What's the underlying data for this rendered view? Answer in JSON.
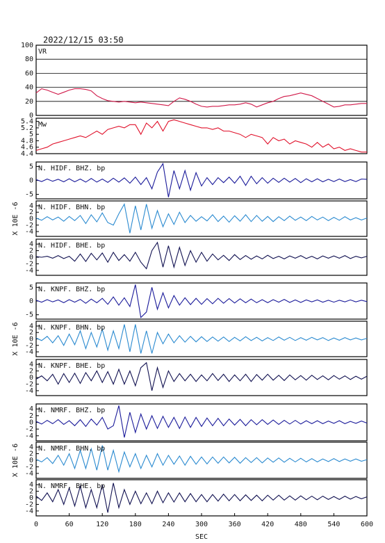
{
  "chart_data": {
    "type": "line",
    "title": "2022/12/15 03:50",
    "xlabel": "SEC",
    "xlim": [
      0,
      600
    ],
    "xticks": [
      0,
      60,
      120,
      180,
      240,
      300,
      360,
      420,
      480,
      540,
      600
    ],
    "x": [
      0,
      10,
      20,
      30,
      40,
      50,
      60,
      70,
      80,
      90,
      100,
      110,
      120,
      130,
      140,
      150,
      160,
      170,
      180,
      190,
      200,
      210,
      220,
      230,
      240,
      250,
      260,
      270,
      280,
      290,
      300,
      310,
      320,
      330,
      340,
      350,
      360,
      370,
      380,
      390,
      400,
      410,
      420,
      430,
      440,
      450,
      460,
      470,
      480,
      490,
      500,
      510,
      520,
      530,
      540,
      550,
      560,
      570,
      580,
      590,
      600
    ],
    "panels": [
      {
        "label": "VR",
        "ylim": [
          0,
          100
        ],
        "yticks": [
          0,
          20,
          40,
          60,
          80,
          100
        ],
        "grid": true,
        "series": [
          {
            "color": "#d01848",
            "values": [
              32,
              38,
              36,
              33,
              30,
              33,
              36,
              38,
              38,
              37,
              35,
              28,
              24,
              21,
              20,
              19,
              20,
              19,
              18,
              19,
              18,
              17,
              16,
              15,
              14,
              20,
              25,
              23,
              20,
              16,
              13,
              12,
              13,
              13,
              14,
              15,
              15,
              16,
              18,
              16,
              12,
              15,
              18,
              20,
              24,
              27,
              28,
              30,
              32,
              30,
              28,
              24,
              20,
              16,
              12,
              13,
              15,
              15,
              16,
              17,
              17
            ]
          }
        ]
      },
      {
        "label": "Mw",
        "ylim": [
          4.4,
          5.5
        ],
        "yticks": [
          4.4,
          4.6,
          4.8,
          5,
          5.2,
          5.4
        ],
        "grid": false,
        "series": [
          {
            "color": "#e0102a",
            "values": [
              4.5,
              4.55,
              4.6,
              4.7,
              4.75,
              4.8,
              4.85,
              4.9,
              4.95,
              4.9,
              5.0,
              5.1,
              5.0,
              5.15,
              5.2,
              5.25,
              5.2,
              5.3,
              5.3,
              5.0,
              5.35,
              5.2,
              5.4,
              5.1,
              5.4,
              5.45,
              5.4,
              5.35,
              5.3,
              5.25,
              5.2,
              5.2,
              5.15,
              5.2,
              5.1,
              5.1,
              5.05,
              5.0,
              4.9,
              5.0,
              4.95,
              4.9,
              4.7,
              4.9,
              4.8,
              4.85,
              4.7,
              4.8,
              4.75,
              4.7,
              4.6,
              4.75,
              4.6,
              4.7,
              4.55,
              4.6,
              4.5,
              4.55,
              4.5,
              4.45,
              4.45
            ]
          }
        ]
      },
      {
        "label": "N. HIDF. BHZ. bp",
        "ylim": [
          -6.6,
          6.6
        ],
        "yticks": [
          -5,
          0,
          5
        ],
        "grid": false,
        "series": [
          {
            "color": "#1a1a9a",
            "values": [
              0.3,
              -0.4,
              0.5,
              -0.3,
              0.4,
              -0.5,
              0.6,
              -0.5,
              0.5,
              -0.6,
              0.7,
              -0.6,
              0.5,
              -0.7,
              0.8,
              -0.6,
              0.9,
              -1,
              1.2,
              -1.5,
              1,
              -3,
              3,
              6,
              -6,
              3.5,
              -3,
              3.5,
              -3.5,
              2.8,
              -2,
              1,
              -1.5,
              1,
              -0.8,
              1.2,
              -1,
              1.5,
              -1.8,
              1.5,
              -1.2,
              1,
              -1,
              0.8,
              -0.7,
              0.8,
              -0.6,
              0.7,
              -0.8,
              0.6,
              -0.5,
              0.6,
              -0.5,
              0.4,
              -0.4,
              0.5,
              -0.4,
              0.3,
              -0.4,
              0.5,
              0.4
            ]
          }
        ]
      },
      {
        "label": "N. HIDF. BHN. bp",
        "ylabel": "X 10E -6",
        "ylim": [
          -5.5,
          5.5
        ],
        "yticks": [
          -4,
          -2,
          0,
          2,
          4
        ],
        "grid": false,
        "series": [
          {
            "color": "#2a8ad0",
            "values": [
              0.2,
              -0.5,
              0.6,
              -0.4,
              0.5,
              -0.8,
              0.7,
              -0.6,
              1,
              -1.5,
              1.2,
              -1,
              1.8,
              -1.2,
              -2,
              1.5,
              4.5,
              -4.5,
              4,
              -3.5,
              4.5,
              -3,
              2.5,
              -2.5,
              1.5,
              -1.8,
              2,
              -1.2,
              1,
              -0.8,
              0.6,
              -0.7,
              1.2,
              -0.9,
              0.8,
              -1.1,
              0.9,
              -0.8,
              1.2,
              -0.9,
              1,
              -0.8,
              0.7,
              -0.9,
              0.6,
              -0.6,
              0.8,
              -0.5,
              0.5,
              -0.6,
              0.7,
              -0.4,
              0.5,
              -0.6,
              0.4,
              -0.5,
              0.6,
              -0.4,
              0.3,
              -0.4,
              0.2
            ]
          }
        ]
      },
      {
        "label": "N. HIDF. BHE. bp",
        "ylim": [
          -5.5,
          5.5
        ],
        "yticks": [
          -4,
          -2,
          0,
          2,
          4
        ],
        "grid": false,
        "series": [
          {
            "color": "#101050",
            "values": [
              0.2,
              0,
              0.3,
              -0.3,
              0.5,
              -0.4,
              0.3,
              -1.2,
              1,
              -1.3,
              1.2,
              -0.8,
              1.3,
              -1.5,
              1.5,
              -1,
              0.8,
              -1.2,
              1.5,
              -1.5,
              -3.5,
              2,
              4.5,
              -3,
              3.5,
              -3,
              3,
              -2.5,
              2,
              -1.5,
              1.5,
              -1.2,
              1,
              -0.8,
              0.6,
              -1,
              0.8,
              -0.7,
              0.5,
              -0.6,
              0.4,
              -0.5,
              0.6,
              -0.4,
              0.3,
              -0.5,
              0.4,
              -0.3,
              0.5,
              -0.4,
              0.3,
              -0.5,
              0.4,
              -0.3,
              0.4,
              -0.3,
              0.5,
              -0.4,
              0.3,
              -0.2,
              0.3
            ]
          }
        ]
      },
      {
        "label": "N. KNPF. BHZ. bp",
        "ylim": [
          -6.6,
          6.6
        ],
        "yticks": [
          -5,
          0,
          5
        ],
        "grid": false,
        "series": [
          {
            "color": "#1a1a9a",
            "values": [
              0.3,
              -0.4,
              0.5,
              -0.3,
              0.4,
              -0.6,
              0.5,
              -0.4,
              0.6,
              -0.8,
              0.7,
              -0.6,
              1,
              -1.2,
              1.5,
              -1.5,
              1.2,
              -2,
              6,
              -6,
              -4,
              5,
              -3,
              3,
              -2.5,
              2,
              -1.5,
              1.2,
              -1.3,
              1,
              -1.2,
              0.9,
              -1,
              1,
              -0.8,
              0.9,
              -0.7,
              0.8,
              -0.6,
              0.7,
              -0.6,
              0.5,
              -0.6,
              0.5,
              -0.4,
              0.6,
              -0.5,
              0.4,
              -0.5,
              0.4,
              -0.3,
              0.4,
              -0.4,
              0.3,
              -0.4,
              0.3,
              -0.3,
              0.4,
              -0.3,
              0.3,
              -0.2
            ]
          }
        ]
      },
      {
        "label": "N. KNPF. BHN. bp",
        "ylabel": "X 10E -6",
        "ylim": [
          -5.5,
          5.5
        ],
        "yticks": [
          -4,
          -2,
          0,
          2,
          4
        ],
        "grid": false,
        "series": [
          {
            "color": "#2a8ad0",
            "values": [
              0.3,
              -0.5,
              0.8,
              -1.2,
              1,
              -2,
              1.5,
              -1.8,
              2.5,
              -3,
              2,
              -2.5,
              3,
              -3.5,
              2.5,
              -3,
              4.5,
              -4,
              4.5,
              -4.5,
              2.5,
              -4.5,
              2,
              -1.5,
              1.5,
              -1.2,
              1,
              -1,
              0.8,
              -0.9,
              0.7,
              -0.8,
              0.6,
              -0.7,
              0.6,
              -0.8,
              0.5,
              -0.6,
              0.7,
              -0.5,
              0.5,
              -0.6,
              0.4,
              -0.5,
              0.6,
              -0.4,
              0.5,
              -0.5,
              0.4,
              -0.4,
              0.5,
              -0.3,
              0.4,
              -0.5,
              0.3,
              -0.4,
              0.4,
              -0.3,
              0.3,
              -0.3,
              0.2
            ]
          }
        ]
      },
      {
        "label": "N. KNPF. BHE. bp",
        "ylim": [
          -5.5,
          5.5
        ],
        "yticks": [
          -4,
          -2,
          0,
          2,
          4
        ],
        "grid": false,
        "series": [
          {
            "color": "#101050",
            "values": [
              -0.5,
              0.5,
              -1,
              1,
              -2,
              1.2,
              -1.5,
              1.3,
              -1.8,
              1.5,
              -1,
              2,
              -1.5,
              1.8,
              -2,
              2.5,
              -2,
              2,
              -2.5,
              3,
              4.5,
              -4,
              3,
              -3,
              2,
              -1.2,
              1.2,
              -1,
              1,
              -1.2,
              0.8,
              -1,
              1.2,
              -0.9,
              1,
              -1.2,
              0.8,
              -1,
              1,
              -1.2,
              0.9,
              -0.8,
              1,
              -0.8,
              0.7,
              -0.9,
              0.8,
              -0.7,
              0.6,
              -0.8,
              0.7,
              -0.6,
              0.5,
              -0.7,
              0.6,
              -0.5,
              0.5,
              -0.6,
              0.4,
              -0.5,
              0.4
            ]
          }
        ]
      },
      {
        "label": "N. NMRF. BHZ. bp",
        "ylim": [
          -5.5,
          5.5
        ],
        "yticks": [
          -4,
          -2,
          0,
          2,
          4
        ],
        "grid": false,
        "series": [
          {
            "color": "#1a1a9a",
            "values": [
              0.3,
              -0.5,
              0.6,
              -0.4,
              0.8,
              -0.6,
              0.5,
              -1,
              0.8,
              -1.2,
              1,
              -0.8,
              1.5,
              -2,
              -1,
              5,
              -4.5,
              3,
              -3,
              2.5,
              -2,
              2,
              -1.8,
              1.8,
              -1.5,
              1.5,
              -1.8,
              1.6,
              -1.5,
              1.5,
              -1.2,
              1.3,
              -1,
              1.2,
              -1,
              1,
              -0.8,
              0.9,
              -1,
              0.8,
              -0.7,
              0.8,
              -0.6,
              0.7,
              -0.6,
              0.6,
              -0.5,
              0.6,
              -0.5,
              0.5,
              -0.4,
              0.5,
              -0.4,
              0.4,
              -0.3,
              0.5,
              -0.4,
              0.3,
              -0.3,
              0.4,
              -0.2
            ]
          }
        ]
      },
      {
        "label": "N. NMRF. BHN. bp",
        "ylabel": "X 10E -6",
        "ylim": [
          -5.5,
          5.5
        ],
        "yticks": [
          -4,
          -2,
          0,
          2,
          4
        ],
        "grid": false,
        "series": [
          {
            "color": "#2a8ad0",
            "values": [
              0.3,
              -0.5,
              0.8,
              -1,
              1.5,
              -1.5,
              2,
              -2.5,
              3,
              -2.5,
              3.5,
              -3,
              4.5,
              -3,
              3,
              -3.5,
              2.5,
              -2,
              2,
              -2.5,
              1.5,
              -2,
              2,
              -1.5,
              1.5,
              -1.2,
              1.3,
              -1.5,
              1.2,
              -1.2,
              1,
              -1.1,
              1,
              -0.9,
              1,
              -0.8,
              0.9,
              -0.9,
              0.8,
              -0.7,
              0.8,
              -0.8,
              0.7,
              -0.6,
              0.7,
              -0.6,
              0.6,
              -0.5,
              0.6,
              -0.5,
              0.5,
              -0.5,
              0.4,
              -0.4,
              0.5,
              -0.4,
              0.4,
              -0.3,
              0.4,
              -0.3,
              0.2
            ]
          }
        ]
      },
      {
        "label": "N. NMRF. BHE. bp",
        "ylim": [
          -5.5,
          5.5
        ],
        "yticks": [
          -4,
          -2,
          0,
          2,
          4
        ],
        "grid": false,
        "series": [
          {
            "color": "#101050",
            "values": [
              0.5,
              -0.8,
              1.5,
              -1.2,
              2.5,
              -2,
              3,
              -2.5,
              3.5,
              -3,
              2.5,
              -3,
              4,
              -4.5,
              4.5,
              -3,
              2.5,
              -2,
              2,
              -1.8,
              1.5,
              -1.8,
              2,
              -1.5,
              1.5,
              -1.3,
              1.5,
              -1.2,
              1.3,
              -1.2,
              1,
              -1.2,
              1,
              -1,
              1.1,
              -0.9,
              1,
              -0.9,
              0.9,
              -0.8,
              0.8,
              -0.9,
              0.8,
              -0.7,
              0.8,
              -0.7,
              0.6,
              -0.7,
              0.6,
              -0.6,
              0.5,
              -0.6,
              0.5,
              -0.5,
              0.4,
              -0.5,
              0.5,
              -0.4,
              0.4,
              -0.3,
              0.3
            ]
          }
        ]
      }
    ]
  }
}
